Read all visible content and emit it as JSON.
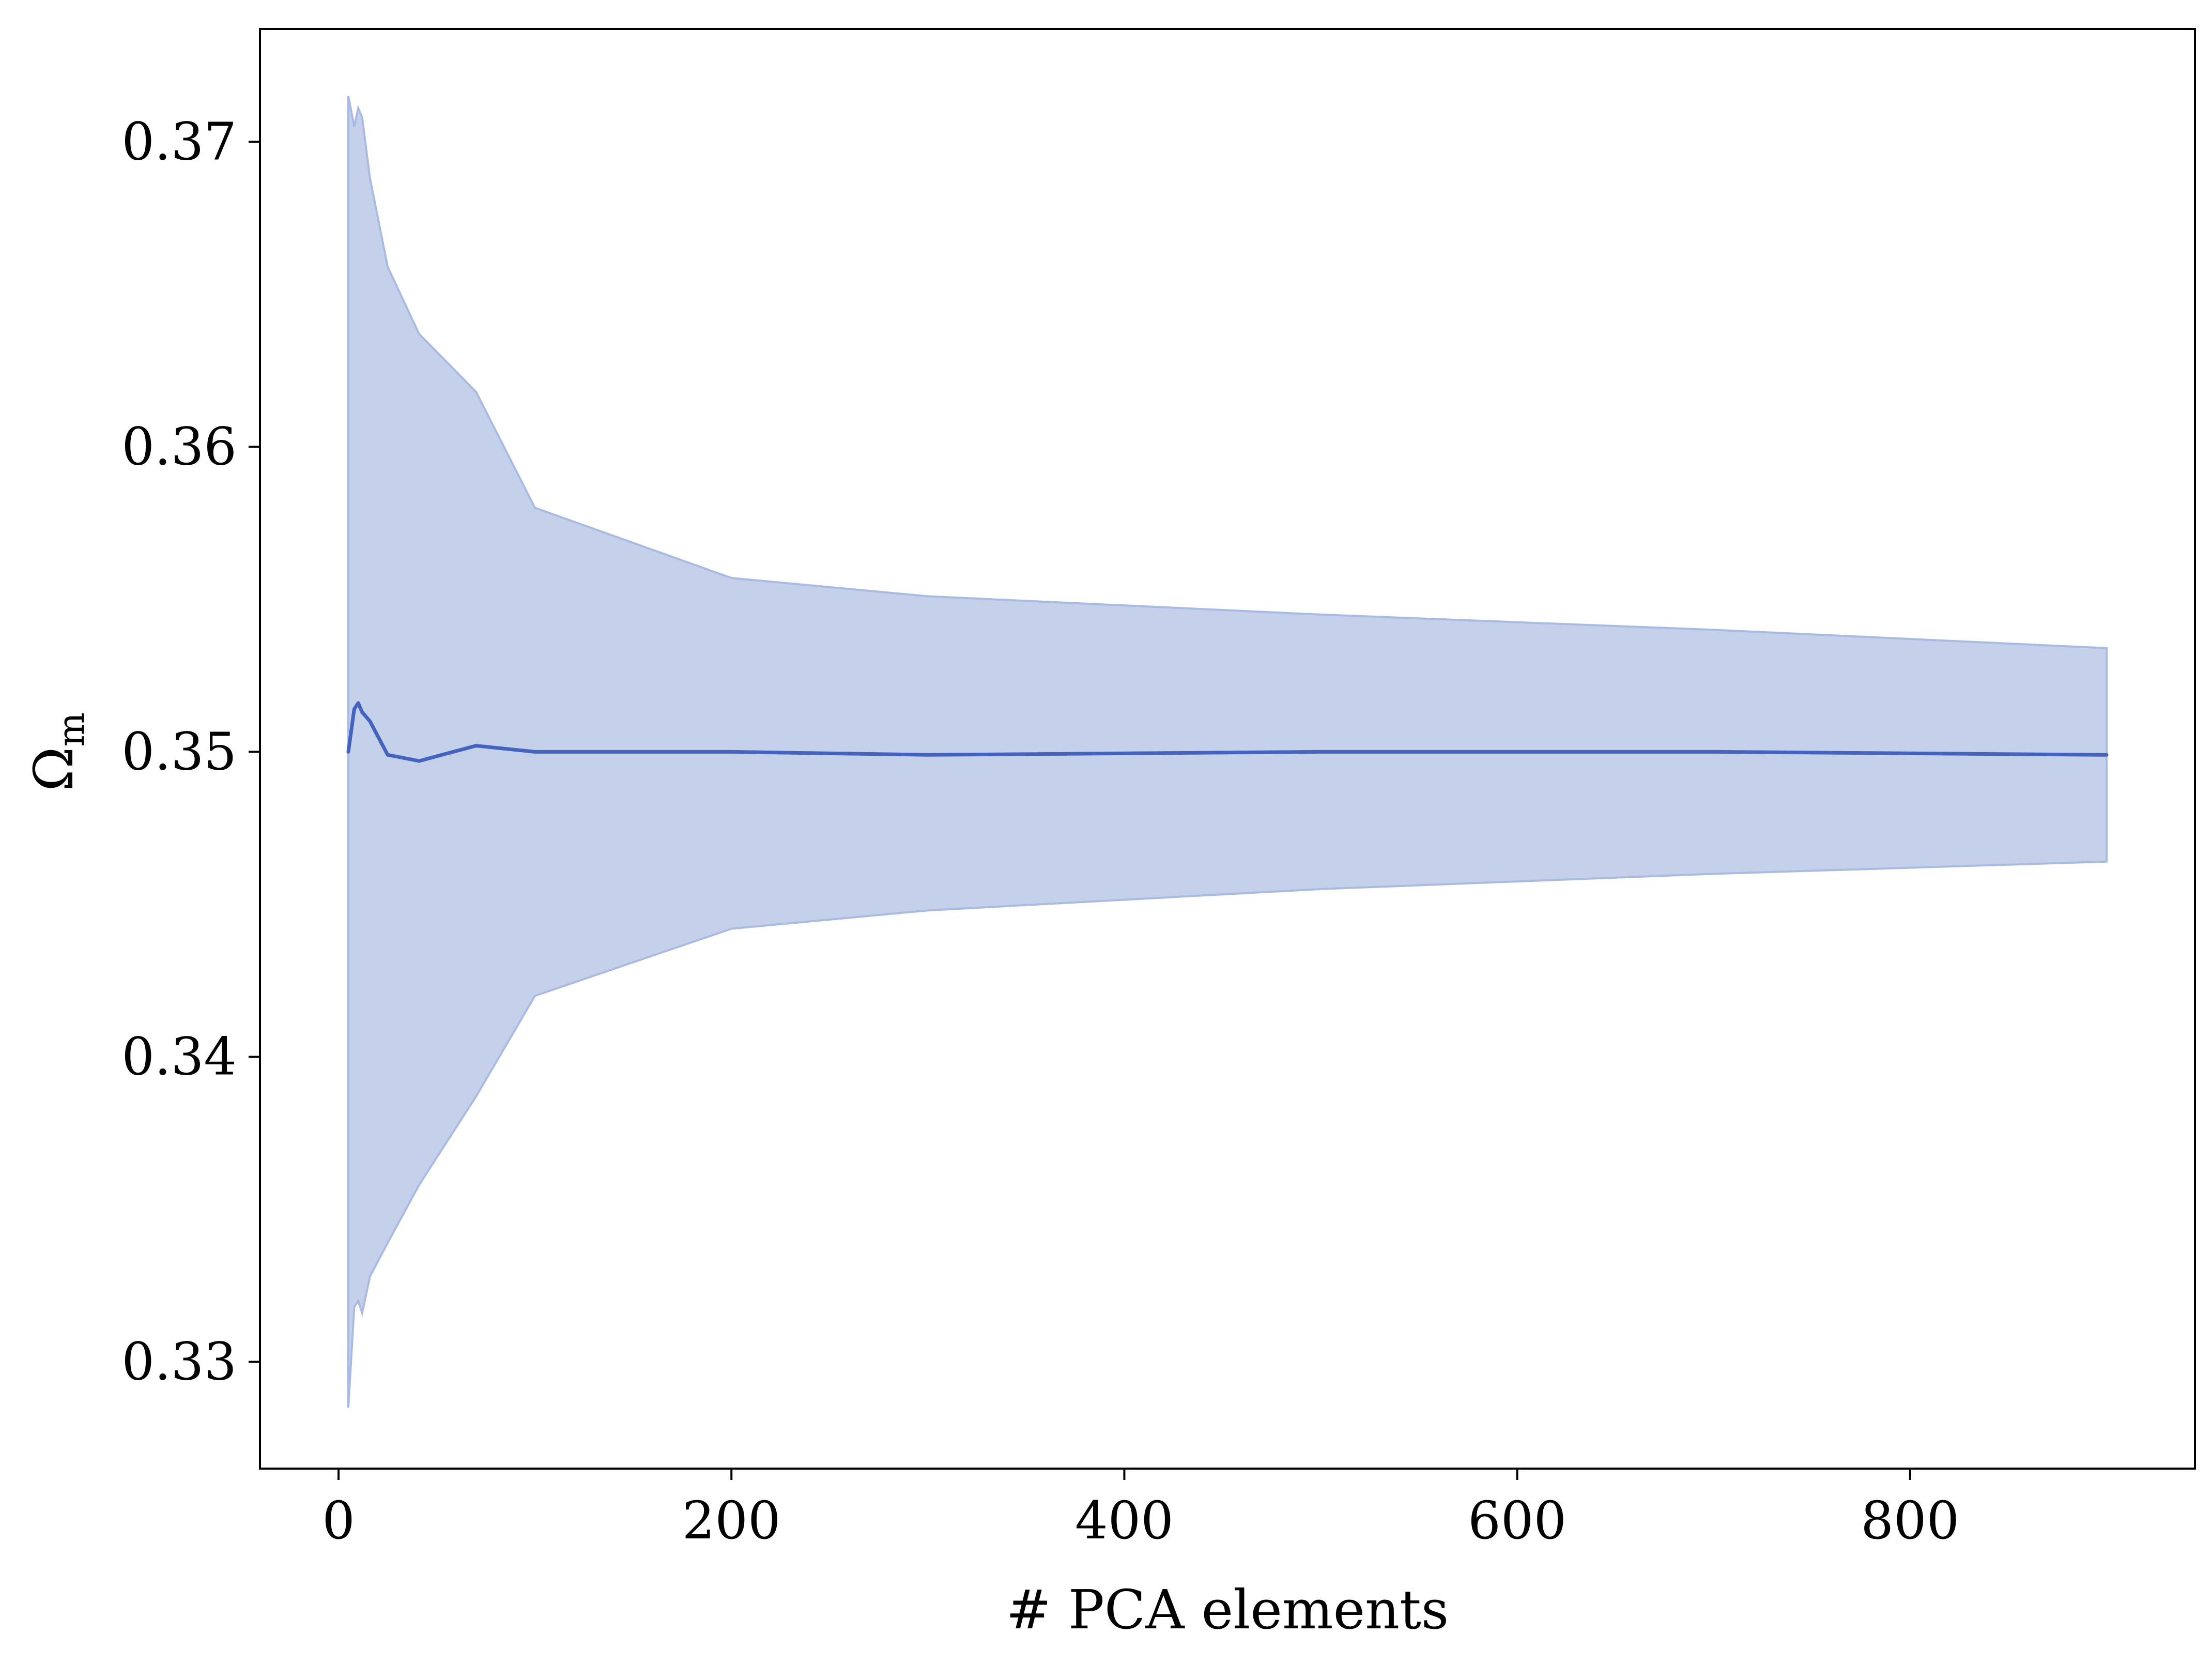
{
  "chart_data": {
    "type": "line",
    "title": "",
    "xlabel": "# PCA elements",
    "ylabel": "Ω",
    "ylabel_subscript": "m",
    "xlim": [
      -40,
      945
    ],
    "ylim": [
      0.3265,
      0.3737
    ],
    "xticks": [
      0,
      200,
      400,
      600,
      800
    ],
    "xtick_labels": [
      "0",
      "200",
      "400",
      "600",
      "800"
    ],
    "yticks": [
      0.33,
      0.34,
      0.35,
      0.36,
      0.37
    ],
    "ytick_labels": [
      "0.33",
      "0.34",
      "0.35",
      "0.36",
      "0.37"
    ],
    "grid": false,
    "legend": "none",
    "series": [
      {
        "x": [
          5,
          8,
          10,
          12,
          16,
          25,
          41,
          70,
          100,
          200,
          300,
          500,
          700,
          900
        ],
        "values": [
          0.35,
          0.3514,
          0.3516,
          0.3513,
          0.351,
          0.3499,
          0.3497,
          0.3502,
          0.35,
          0.35,
          0.3499,
          0.35,
          0.35,
          0.3499
        ],
        "lower": [
          0.3285,
          0.3318,
          0.332,
          0.3316,
          0.3328,
          0.3339,
          0.3358,
          0.3387,
          0.342,
          0.3442,
          0.3448,
          0.3455,
          0.346,
          0.3464
        ],
        "upper": [
          0.3715,
          0.3705,
          0.3711,
          0.3708,
          0.3688,
          0.3659,
          0.3637,
          0.3618,
          0.358,
          0.3557,
          0.3551,
          0.3545,
          0.354,
          0.3534
        ],
        "color": "#4463be",
        "band_color": "#c5d1eb",
        "band_edge_color": "#a9bbe3"
      }
    ]
  }
}
